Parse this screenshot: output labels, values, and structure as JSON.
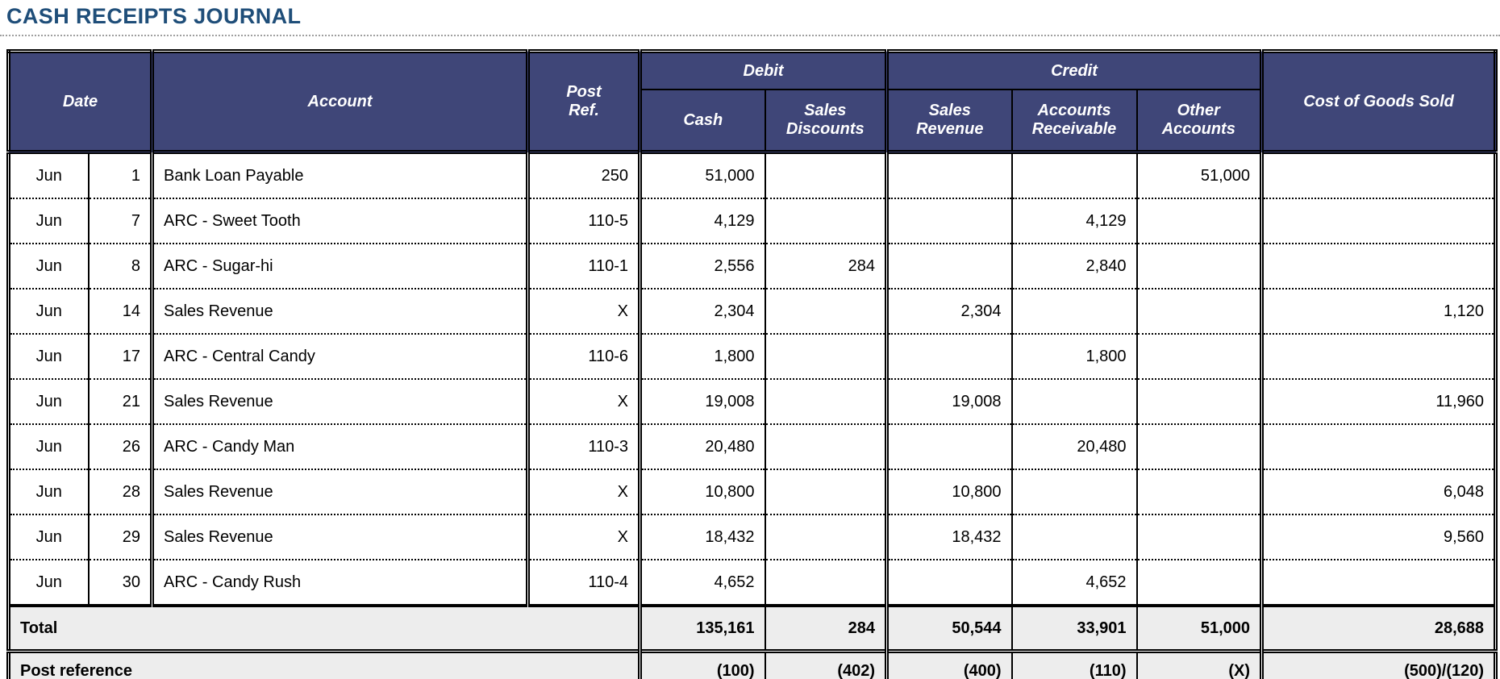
{
  "page": {
    "title": "CASH RECEIPTS JOURNAL"
  },
  "colors": {
    "title_text": "#1F4E79",
    "header_bg": "#3F4678",
    "header_text": "#FFFFFF",
    "summary_row_bg": "#EDEDED",
    "border": "#000000"
  },
  "table": {
    "headers": {
      "date": "Date",
      "account": "Account",
      "post_ref": "Post Ref.",
      "debit_group": "Debit",
      "credit_group": "Credit",
      "cash": "Cash",
      "sales_discounts": "Sales Discounts",
      "sales_revenue": "Sales Revenue",
      "accounts_receivable": "Accounts Receivable",
      "other_accounts": "Other Accounts",
      "cogs": "Cost of Goods Sold"
    },
    "rows": [
      {
        "month": "Jun",
        "day": "1",
        "account": "Bank Loan Payable",
        "post_ref": "250",
        "cash": "51,000",
        "sales_discounts": "",
        "sales_revenue": "",
        "accounts_receivable": "",
        "other_accounts": "51,000",
        "cogs": ""
      },
      {
        "month": "Jun",
        "day": "7",
        "account": "ARC - Sweet Tooth",
        "post_ref": "110-5",
        "cash": "4,129",
        "sales_discounts": "",
        "sales_revenue": "",
        "accounts_receivable": "4,129",
        "other_accounts": "",
        "cogs": ""
      },
      {
        "month": "Jun",
        "day": "8",
        "account": "ARC - Sugar-hi",
        "post_ref": "110-1",
        "cash": "2,556",
        "sales_discounts": "284",
        "sales_revenue": "",
        "accounts_receivable": "2,840",
        "other_accounts": "",
        "cogs": ""
      },
      {
        "month": "Jun",
        "day": "14",
        "account": "Sales Revenue",
        "post_ref": "X",
        "cash": "2,304",
        "sales_discounts": "",
        "sales_revenue": "2,304",
        "accounts_receivable": "",
        "other_accounts": "",
        "cogs": "1,120"
      },
      {
        "month": "Jun",
        "day": "17",
        "account": "ARC - Central Candy",
        "post_ref": "110-6",
        "cash": "1,800",
        "sales_discounts": "",
        "sales_revenue": "",
        "accounts_receivable": "1,800",
        "other_accounts": "",
        "cogs": ""
      },
      {
        "month": "Jun",
        "day": "21",
        "account": "Sales Revenue",
        "post_ref": "X",
        "cash": "19,008",
        "sales_discounts": "",
        "sales_revenue": "19,008",
        "accounts_receivable": "",
        "other_accounts": "",
        "cogs": "11,960"
      },
      {
        "month": "Jun",
        "day": "26",
        "account": "ARC - Candy Man",
        "post_ref": "110-3",
        "cash": "20,480",
        "sales_discounts": "",
        "sales_revenue": "",
        "accounts_receivable": "20,480",
        "other_accounts": "",
        "cogs": ""
      },
      {
        "month": "Jun",
        "day": "28",
        "account": "Sales Revenue",
        "post_ref": "X",
        "cash": "10,800",
        "sales_discounts": "",
        "sales_revenue": "10,800",
        "accounts_receivable": "",
        "other_accounts": "",
        "cogs": "6,048"
      },
      {
        "month": "Jun",
        "day": "29",
        "account": "Sales Revenue",
        "post_ref": "X",
        "cash": "18,432",
        "sales_discounts": "",
        "sales_revenue": "18,432",
        "accounts_receivable": "",
        "other_accounts": "",
        "cogs": "9,560"
      },
      {
        "month": "Jun",
        "day": "30",
        "account": "ARC - Candy Rush",
        "post_ref": "110-4",
        "cash": "4,652",
        "sales_discounts": "",
        "sales_revenue": "",
        "accounts_receivable": "4,652",
        "other_accounts": "",
        "cogs": ""
      }
    ],
    "total": {
      "label": "Total",
      "cash": "135,161",
      "sales_discounts": "284",
      "sales_revenue": "50,544",
      "accounts_receivable": "33,901",
      "other_accounts": "51,000",
      "cogs": "28,688"
    },
    "post_reference": {
      "label": "Post reference",
      "cash": "(100)",
      "sales_discounts": "(402)",
      "sales_revenue": "(400)",
      "accounts_receivable": "(110)",
      "other_accounts": "(X)",
      "cogs": "(500)/(120)"
    }
  }
}
